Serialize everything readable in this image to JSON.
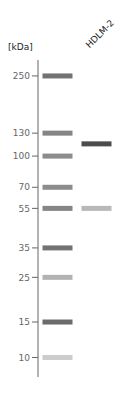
{
  "chart_data": {
    "type": "gel",
    "title": "HDLM-2",
    "ylabel": "[kDa]",
    "log": "y",
    "ylim": [
      8,
      300
    ],
    "yticks": [
      250,
      130,
      100,
      70,
      55,
      35,
      25,
      15,
      10
    ],
    "tick_labels": "y",
    "grid": false,
    "series": [
      {
        "values": [
          250,
          130,
          100,
          70,
          55,
          35,
          25,
          15,
          10
        ],
        "colors": [
          "#737373",
          "#858585",
          "#8c8c8c",
          "#8c8c8c",
          "#858585",
          "#737373",
          "#b2b2b2",
          "#6b6b6b",
          "#cccccc"
        ]
      },
      {
        "values": [
          115,
          55
        ],
        "colors": [
          "#4c4c4c",
          "#b8b8b8"
        ]
      }
    ]
  }
}
